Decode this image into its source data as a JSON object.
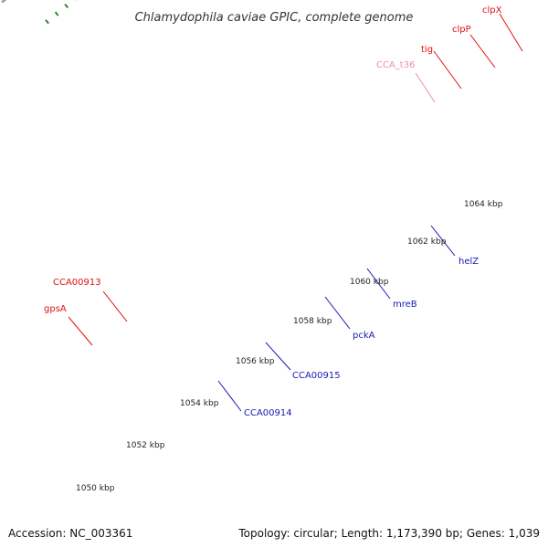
{
  "title": "Chlamydophila caviae GPIC, complete genome",
  "footer": {
    "accession": "Accession: NC_003361",
    "summary": "Topology: circular; Length: 1,173,390 bp; Genes: 1,039"
  },
  "colors": {
    "background": "#ffffff",
    "backbone": "#8a8a8a",
    "tick": "#1f7a1f",
    "label_forward": "#e01010",
    "label_reverse": "#1a1ab4",
    "label_rna": "#f08cb4"
  },
  "scale_labels": [
    "1050 kbp",
    "1052 kbp",
    "1054 kbp",
    "1056 kbp",
    "1058 kbp",
    "1060 kbp",
    "1062 kbp",
    "1064 kbp"
  ],
  "genes": {
    "forward": [
      {
        "name": "clpX",
        "color": "#b8b478"
      },
      {
        "name": "clpP",
        "color": "#a8d838"
      },
      {
        "name": "tig",
        "color": "#b8b478"
      },
      {
        "name": "CCA_t36",
        "color": "#f0a0c0"
      },
      {
        "name": "CCA00913",
        "color": "#ff1010"
      },
      {
        "name": "gpsA",
        "color": "#30d8d8"
      },
      {
        "name": "",
        "color": "#8cc83c"
      },
      {
        "name": "",
        "color": "#ff1010"
      }
    ],
    "reverse": [
      {
        "name": "helZ",
        "color": "#ff1493"
      },
      {
        "name": "",
        "color": "#ff8c00"
      },
      {
        "name": "mreB",
        "color": "#e8e0a0"
      },
      {
        "name": "pckA",
        "color": "#20f0f0"
      },
      {
        "name": "CCA00915",
        "color": "#1414dc"
      },
      {
        "name": "CCA00914",
        "color": "#1414dc"
      }
    ]
  },
  "callouts": [
    {
      "text": "clpX",
      "color": "#e01010"
    },
    {
      "text": "clpP",
      "color": "#e01010"
    },
    {
      "text": "tig",
      "color": "#e01010"
    },
    {
      "text": "CCA_t36",
      "color": "#f08cb4"
    },
    {
      "text": "CCA00913",
      "color": "#e01010"
    },
    {
      "text": "gpsA",
      "color": "#e01010"
    },
    {
      "text": "helZ",
      "color": "#1a1ab4"
    },
    {
      "text": "mreB",
      "color": "#1a1ab4"
    },
    {
      "text": "pckA",
      "color": "#1a1ab4"
    },
    {
      "text": "CCA00915",
      "color": "#1a1ab4"
    },
    {
      "text": "CCA00914",
      "color": "#1a1ab4"
    }
  ]
}
